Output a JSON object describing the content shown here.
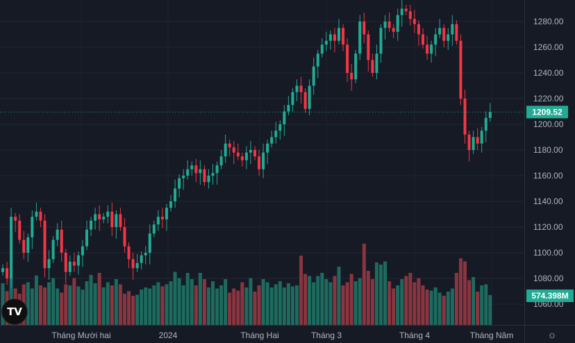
{
  "chart_data": {
    "type": "candlestick",
    "price_axis": {
      "ticks": [
        1060,
        1080,
        1100,
        1120,
        1140,
        1160,
        1180,
        1200,
        1220,
        1240,
        1260,
        1280
      ],
      "range": [
        1055,
        1295
      ]
    },
    "time_axis": {
      "labels": [
        "Tháng Mười hai",
        "2024",
        "Tháng Hai",
        "Tháng 3",
        "Tháng 4",
        "Tháng Năm"
      ]
    },
    "last_price": "1209.52",
    "last_volume": "574.398M",
    "grid": true,
    "colors": {
      "up": "#22ab94",
      "down": "#f23645",
      "volume_up": "#1d6b5e",
      "volume_down": "#8a3540",
      "background": "#161a25"
    },
    "close": [
      1088,
      1080,
      1128,
      1125,
      1110,
      1100,
      1112,
      1128,
      1132,
      1125,
      1088,
      1095,
      1110,
      1118,
      1100,
      1085,
      1093,
      1090,
      1098,
      1105,
      1118,
      1125,
      1130,
      1126,
      1128,
      1132,
      1120,
      1130,
      1120,
      1105,
      1095,
      1088,
      1092,
      1098,
      1100,
      1115,
      1122,
      1128,
      1126,
      1135,
      1140,
      1150,
      1158,
      1160,
      1165,
      1168,
      1162,
      1165,
      1155,
      1160,
      1162,
      1168,
      1175,
      1185,
      1182,
      1178,
      1175,
      1172,
      1178,
      1180,
      1175,
      1165,
      1178,
      1185,
      1190,
      1195,
      1200,
      1210,
      1215,
      1225,
      1230,
      1225,
      1212,
      1230,
      1245,
      1255,
      1262,
      1265,
      1270,
      1265,
      1275,
      1262,
      1240,
      1235,
      1255,
      1280,
      1270,
      1250,
      1240,
      1255,
      1275,
      1280,
      1275,
      1272,
      1285,
      1290,
      1288,
      1282,
      1278,
      1270,
      1262,
      1255,
      1262,
      1270,
      1275,
      1265,
      1270,
      1278,
      1265,
      1220,
      1192,
      1180,
      1190,
      1185,
      1195,
      1205,
      1209.52
    ],
    "volume_m": [
      800,
      650,
      900,
      700,
      600,
      780,
      820,
      700,
      950,
      760,
      720,
      820,
      900,
      700,
      620,
      780,
      760,
      900,
      740,
      680,
      840,
      960,
      800,
      1000,
      720,
      820,
      760,
      880,
      780,
      600,
      650,
      560,
      580,
      680,
      720,
      700,
      760,
      820,
      740,
      780,
      840,
      1020,
      900,
      760,
      1000,
      880,
      760,
      1000,
      880,
      720,
      840,
      700,
      760,
      880,
      620,
      700,
      660,
      820,
      720,
      900,
      640,
      760,
      880,
      820,
      720,
      780,
      840,
      720,
      800,
      740,
      760,
      1330,
      980,
      940,
      820,
      940,
      1000,
      880,
      820,
      940,
      1120,
      760,
      820,
      980,
      840,
      900,
      1560,
      1040,
      880,
      1200,
      1160,
      1220,
      840,
      700,
      760,
      880,
      940,
      1000,
      820,
      900,
      760,
      680,
      660,
      720,
      620,
      560,
      640,
      700,
      1000,
      1280,
      1220,
      860,
      920,
      640,
      760,
      780,
      574.398
    ]
  }
}
